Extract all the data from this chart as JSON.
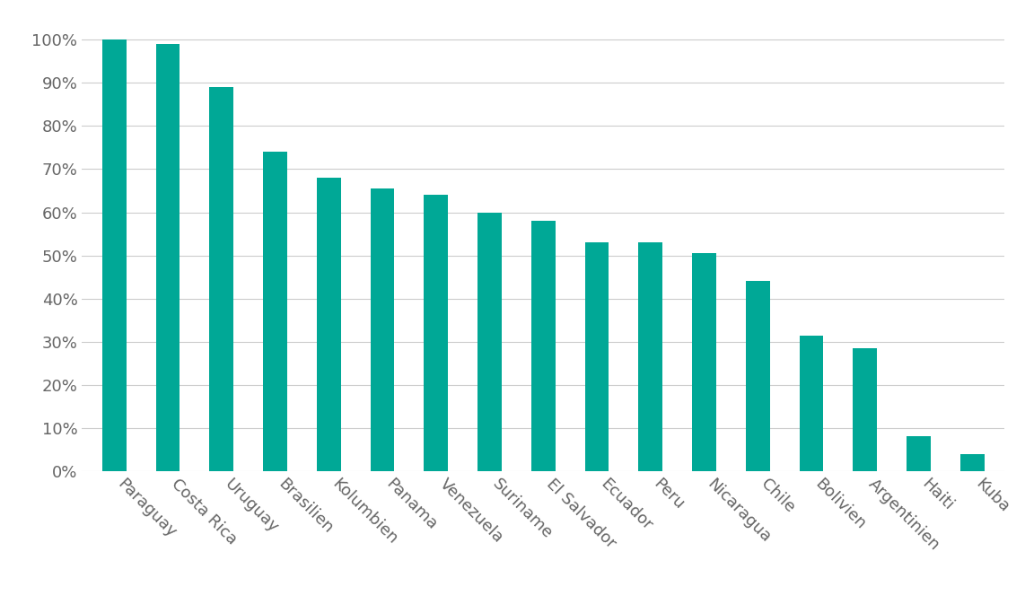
{
  "categories": [
    "Paraguay",
    "Costa Rica",
    "Uruguay",
    "Brasilien",
    "Kolumbien",
    "Panama",
    "Venezuela",
    "Suriname",
    "El Salvador",
    "Ecuador",
    "Peru",
    "Nicaragua",
    "Chile",
    "Bolivien",
    "Argentinien",
    "Haiti",
    "Kuba"
  ],
  "values": [
    100,
    99,
    89,
    74,
    68,
    65.5,
    64,
    60,
    58,
    53,
    53,
    50.5,
    44,
    31.5,
    28.5,
    8,
    4
  ],
  "bar_color": "#00A896",
  "background_color": "#FFFFFF",
  "ylim": [
    0,
    105
  ],
  "yticks": [
    0,
    10,
    20,
    30,
    40,
    50,
    60,
    70,
    80,
    90,
    100
  ],
  "grid_color": "#CCCCCC",
  "tick_label_color": "#666666",
  "tick_label_fontsize": 13,
  "bar_width": 0.45
}
